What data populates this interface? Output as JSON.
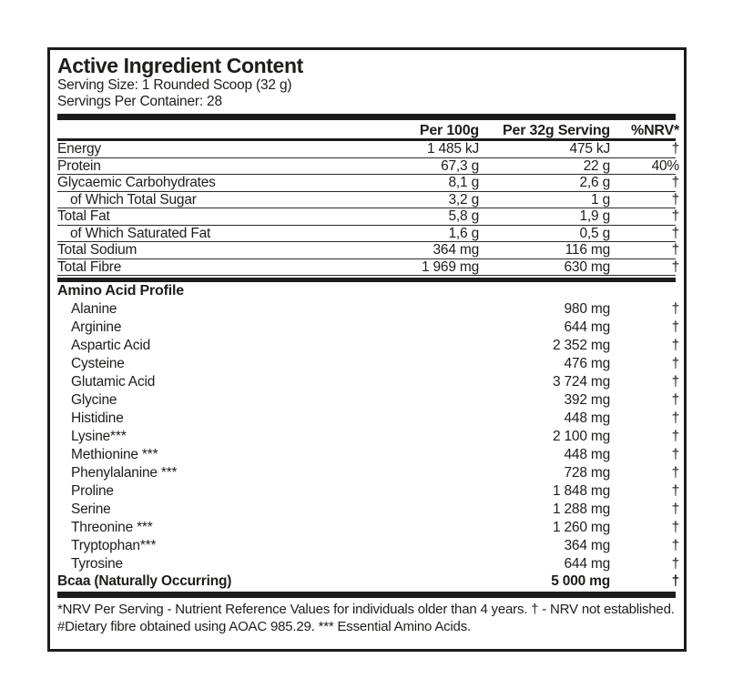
{
  "label": {
    "title": "Active Ingredient Content",
    "serving_size": "Serving Size: 1 Rounded Scoop (32 g)",
    "servings_per_container": "Servings Per Container: 28",
    "columns": [
      "Per 100g",
      "Per 32g Serving",
      "%NRV*"
    ],
    "rows": [
      {
        "name": "Energy",
        "per100": "1 485 kJ",
        "per32": "475 kJ",
        "nrv": "†"
      },
      {
        "name": "Protein",
        "per100": "67,3 g",
        "per32": "22 g",
        "nrv": "40%"
      },
      {
        "name": "Glycaemic Carbohydrates",
        "per100": "8,1 g",
        "per32": "2,6 g",
        "nrv": "†"
      },
      {
        "name": "of Which Total Sugar",
        "per100": "3,2 g",
        "per32": "1 g",
        "nrv": "†"
      },
      {
        "name": "Total Fat",
        "per100": "5,8 g",
        "per32": "1,9 g",
        "nrv": "†"
      },
      {
        "name": "of Which Saturated Fat",
        "per100": "1,6 g",
        "per32": "0,5 g",
        "nrv": "†"
      },
      {
        "name": "Total Sodium",
        "per100": "364 mg",
        "per32": "116 mg",
        "nrv": "†"
      },
      {
        "name": "Total Fibre",
        "per100": "1 969 mg",
        "per32": "630 mg",
        "nrv": "†"
      }
    ],
    "amino_section": {
      "heading": "Amino Acid Profile",
      "rows": [
        {
          "name": "Alanine",
          "per32": "980 mg",
          "nrv": "†"
        },
        {
          "name": "Arginine",
          "per32": "644 mg",
          "nrv": "†"
        },
        {
          "name": "Aspartic Acid",
          "per32": "2 352 mg",
          "nrv": "†"
        },
        {
          "name": "Cysteine",
          "per32": "476 mg",
          "nrv": "†"
        },
        {
          "name": "Glutamic Acid",
          "per32": "3 724 mg",
          "nrv": "†"
        },
        {
          "name": "Glycine",
          "per32": "392 mg",
          "nrv": "†"
        },
        {
          "name": "Histidine",
          "per32": "448 mg",
          "nrv": "†"
        },
        {
          "name": "Lysine***",
          "per32": "2 100 mg",
          "nrv": "†"
        },
        {
          "name": "Methionine ***",
          "per32": "448 mg",
          "nrv": "†"
        },
        {
          "name": "Phenylalanine ***",
          "per32": "728 mg",
          "nrv": "†"
        },
        {
          "name": "Proline",
          "per32": "1 848 mg",
          "nrv": "†"
        },
        {
          "name": "Serine",
          "per32": "1 288 mg",
          "nrv": "†"
        },
        {
          "name": "Threonine ***",
          "per32": "1 260 mg",
          "nrv": "†"
        },
        {
          "name": "Tryptophan***",
          "per32": "364 mg",
          "nrv": "†"
        },
        {
          "name": "Tyrosine",
          "per32": "644 mg",
          "nrv": "†"
        }
      ],
      "total_row": {
        "name": "Bcaa (Naturally Occurring)",
        "per32": "5 000 mg",
        "nrv": "†"
      }
    },
    "footnotes": [
      "*NRV Per Serving - Nutrient Reference Values for individuals older than 4 years. † - NRV not established.",
      "#Dietary fibre obtained using AOAC 985.29. *** Essential Amino Acids."
    ],
    "colors": {
      "text": "#1d1d1b",
      "border": "#1c1c1c",
      "background": "#ffffff"
    }
  }
}
